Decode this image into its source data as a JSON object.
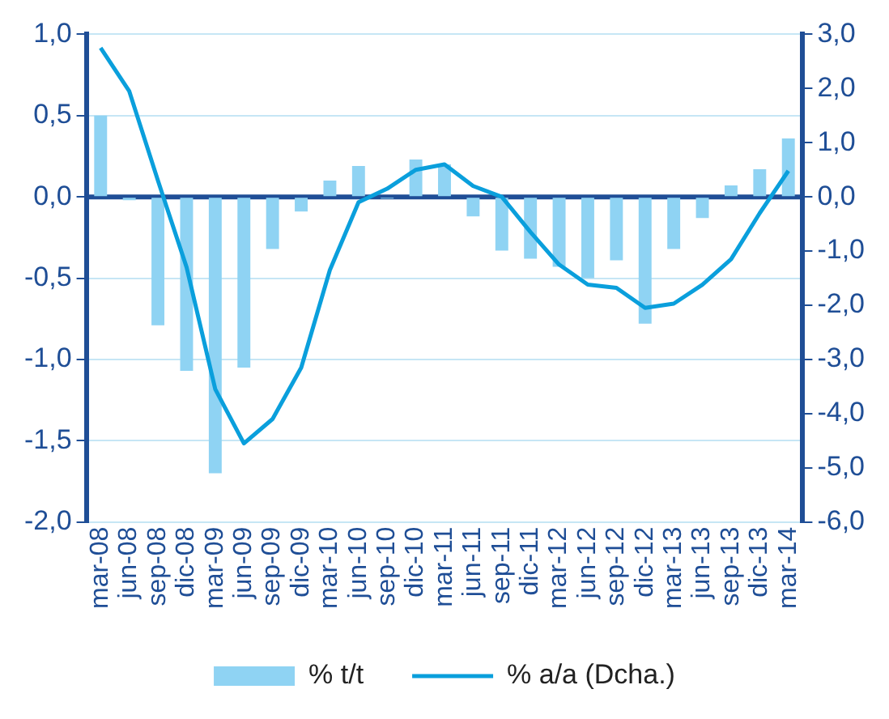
{
  "chart_data": {
    "type": "bar",
    "categories": [
      "mar-08",
      "jun-08",
      "sep-08",
      "dic-08",
      "mar-09",
      "jun-09",
      "sep-09",
      "dic-09",
      "mar-10",
      "jun-10",
      "sep-10",
      "dic-10",
      "mar-11",
      "jun-11",
      "sep-11",
      "dic-11",
      "mar-12",
      "jun-12",
      "sep-12",
      "dic-12",
      "mar-13",
      "jun-13",
      "sep-13",
      "dic-13",
      "mar-14"
    ],
    "series": [
      {
        "name": "% t/t",
        "color": "#8fd3f3",
        "values": [
          0.5,
          -0.02,
          -0.79,
          -1.07,
          -1.7,
          -1.05,
          -0.32,
          -0.09,
          0.1,
          0.19,
          -0.01,
          0.23,
          0.2,
          -0.12,
          -0.33,
          -0.38,
          -0.43,
          -0.5,
          -0.39,
          -0.78,
          -0.32,
          -0.13,
          0.07,
          0.17,
          0.36
        ]
      },
      {
        "name": "% a/a (Dcha.)",
        "type": "line",
        "axis": "y2",
        "color": "#0a9fdc",
        "values": [
          2.75,
          1.95,
          0.3,
          -1.3,
          -3.55,
          -4.55,
          -4.1,
          -3.15,
          -1.35,
          -0.1,
          0.15,
          0.5,
          0.6,
          0.2,
          0.0,
          -0.65,
          -1.25,
          -1.62,
          -1.68,
          -2.05,
          -1.97,
          -1.62,
          -1.15,
          -0.3,
          0.48
        ]
      }
    ],
    "ylim": [
      -2,
      1
    ],
    "yticks": [
      {
        "value": -2,
        "label": "-2,0"
      },
      {
        "value": -1.5,
        "label": "-1,5"
      },
      {
        "value": -1,
        "label": "-1,0"
      },
      {
        "value": -0.5,
        "label": "-0,5"
      },
      {
        "value": 0,
        "label": "0,0"
      },
      {
        "value": 0.5,
        "label": "0,5"
      },
      {
        "value": 1,
        "label": "1,0"
      }
    ],
    "y2lim": [
      -6,
      3
    ],
    "y2ticks": [
      {
        "value": -6,
        "label": "-6,0"
      },
      {
        "value": -5,
        "label": "-5,0"
      },
      {
        "value": -4,
        "label": "-4,0"
      },
      {
        "value": -3,
        "label": "-3,0"
      },
      {
        "value": -2,
        "label": "-2,0"
      },
      {
        "value": -1,
        "label": "-1,0"
      },
      {
        "value": 0,
        "label": "0,0"
      },
      {
        "value": 1,
        "label": "1,0"
      },
      {
        "value": 2,
        "label": "2,0"
      },
      {
        "value": 3,
        "label": "3,0"
      }
    ],
    "ref_lines": [
      {
        "axis": "y",
        "value": 0,
        "color": "#1f4e96"
      }
    ],
    "grid": "y",
    "legend": "bottom",
    "marker": "none",
    "line_style": "solid"
  }
}
